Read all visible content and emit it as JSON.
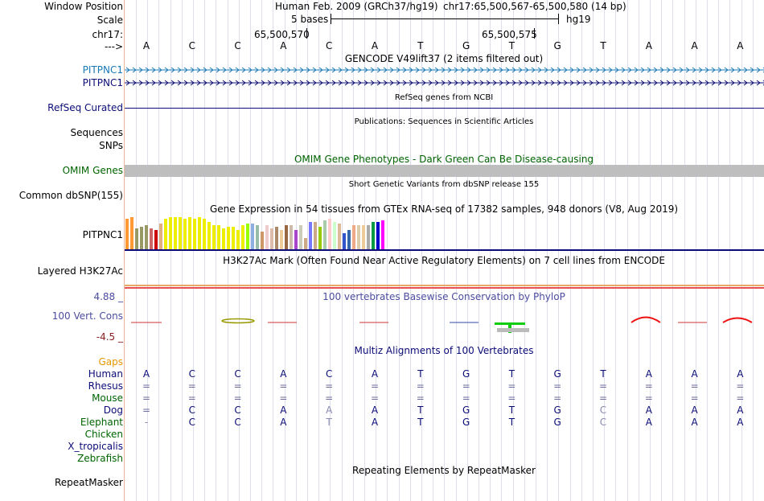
{
  "ruler": {
    "window_position_label": "Window Position",
    "scale_label": "Scale",
    "chrom_label": "chr17:",
    "arrow_label": "--->",
    "assembly": "Human Feb. 2009 (GRCh37/hg19)",
    "coordinates": "chr17:65,500,567-65,500,580 (14 bp)",
    "scale_text": "5 bases",
    "db": "hg19",
    "tick1": "65,500,570",
    "tick2": "65,500,575",
    "bases": [
      "A",
      "C",
      "C",
      "A",
      "C",
      "A",
      "T",
      "G",
      "T",
      "G",
      "T",
      "A",
      "A",
      "A"
    ]
  },
  "tracks": {
    "gencode": {
      "title": "GENCODE V49lift37 (2 items filtered out)",
      "items": [
        "PITPNC1",
        "PITPNC1"
      ],
      "colors": [
        "#1a7ab8",
        "#0c0c78"
      ]
    },
    "refseq": {
      "title": "RefSeq genes from NCBI",
      "label": "RefSeq Curated"
    },
    "publications": {
      "title": "Publications: Sequences in Scientific Articles",
      "labels": [
        "Sequences",
        "SNPs"
      ]
    },
    "omim": {
      "title": "OMIM Gene Phenotypes - Dark Green Can Be Disease-causing",
      "label": "OMIM Genes",
      "color": "#006400"
    },
    "dbsnp": {
      "title": "Short Genetic Variants from dbSNP release 155",
      "label": "Common dbSNP(155)"
    },
    "gtex": {
      "title": "Gene Expression in 54 tissues from GTEx RNA-seq of 17382 samples, 948 donors (V8, Aug 2019)",
      "label": "PITPNC1",
      "values": [
        0.95,
        1.0,
        0.65,
        0.7,
        0.75,
        0.65,
        0.6,
        0.8,
        0.95,
        1.0,
        1.0,
        1.0,
        0.95,
        1.0,
        0.95,
        1.0,
        0.95,
        0.85,
        0.75,
        0.75,
        0.65,
        0.7,
        0.7,
        0.6,
        0.75,
        0.8,
        0.8,
        0.75,
        0.55,
        0.75,
        0.65,
        0.7,
        0.6,
        0.75,
        0.75,
        0.6,
        0.75,
        0.35,
        0.85,
        0.85,
        0.7,
        0.9,
        0.95,
        0.85,
        0.8,
        0.5,
        0.6,
        0.75,
        0.75,
        0.75,
        0.75,
        0.85,
        0.85,
        0.9
      ],
      "colors": [
        "#ff9933",
        "#ff9933",
        "#999966",
        "#999966",
        "#999966",
        "#cc6666",
        "#cc0000",
        "#e0b080",
        "#eeee00",
        "#eeee00",
        "#eeee00",
        "#eeee00",
        "#eeee00",
        "#eeee00",
        "#eeee00",
        "#eeee00",
        "#eeee00",
        "#eeee00",
        "#eeee00",
        "#eeee00",
        "#eeee00",
        "#eeee00",
        "#eeee00",
        "#eeee00",
        "#eeee00",
        "#99ff00",
        "#8db0e0",
        "#99bbaa",
        "#cc9966",
        "#eecccc",
        "#ddbbaa",
        "#aa8866",
        "#eecc99",
        "#996644",
        "#ccbbaa",
        "#aa44cc",
        "#ccccbb",
        "#ccaa88",
        "#7777ff",
        "#ccaa88",
        "#99cc00",
        "#aaccaa",
        "#ffcccc",
        "#ccffcc",
        "#ddbb99",
        "#3355cc",
        "#3366aa",
        "#eeaa88",
        "#ddccaa",
        "#eecc99",
        "#aaaaaa",
        "#009944",
        "#0000cc",
        "#ff00ff"
      ]
    },
    "h3k27ac": {
      "title": "H3K27Ac Mark (Often Found Near Active Regulatory Elements) on 7 cell lines from ENCODE",
      "label": "Layered H3K27Ac"
    },
    "phylop": {
      "title": "100 vertebrates Basewise Conservation by PhyloP",
      "label": "100 Vert. Cons",
      "max": "4.88 _",
      "min": "-4.5 _",
      "color": "#4b4ba0"
    },
    "multiz": {
      "title": "Multiz Alignments of 100 Vertebrates",
      "species": [
        {
          "name": "Human",
          "color": "#0c0c78",
          "bases": [
            "A",
            "C",
            "C",
            "A",
            "C",
            "A",
            "T",
            "G",
            "T",
            "G",
            "T",
            "A",
            "A",
            "A"
          ]
        },
        {
          "name": "Rhesus",
          "color": "#0c0c78",
          "bases": [
            "=",
            "=",
            "=",
            "=",
            "=",
            "=",
            "=",
            "=",
            "=",
            "=",
            "=",
            "=",
            "=",
            "="
          ]
        },
        {
          "name": "Mouse",
          "color": "#006400",
          "bases": [
            "=",
            "=",
            "=",
            "=",
            "=",
            "=",
            "=",
            "=",
            "=",
            "=",
            "=",
            "=",
            "=",
            "="
          ]
        },
        {
          "name": "Dog",
          "color": "#0c0c78",
          "bases": [
            "=",
            "C",
            "C",
            "A",
            "A",
            "A",
            "T",
            "G",
            "T",
            "G",
            "C",
            "A",
            "A",
            "A"
          ]
        },
        {
          "name": "Elephant",
          "color": "#006400",
          "bases": [
            "-",
            "C",
            "C",
            "A",
            "T",
            "A",
            "T",
            "G",
            "T",
            "G",
            "C",
            "A",
            "A",
            "A"
          ]
        },
        {
          "name": "Chicken",
          "color": "#006400",
          "bases": []
        },
        {
          "name": "X_tropicalis",
          "color": "#0c0c78",
          "bases": []
        },
        {
          "name": "Zebrafish",
          "color": "#006400",
          "bases": []
        }
      ],
      "gaps_label": "Gaps",
      "gaps_color": "#e69500"
    },
    "repeatmasker": {
      "title": "Repeating Elements by RepeatMasker",
      "label": "RepeatMasker"
    }
  }
}
